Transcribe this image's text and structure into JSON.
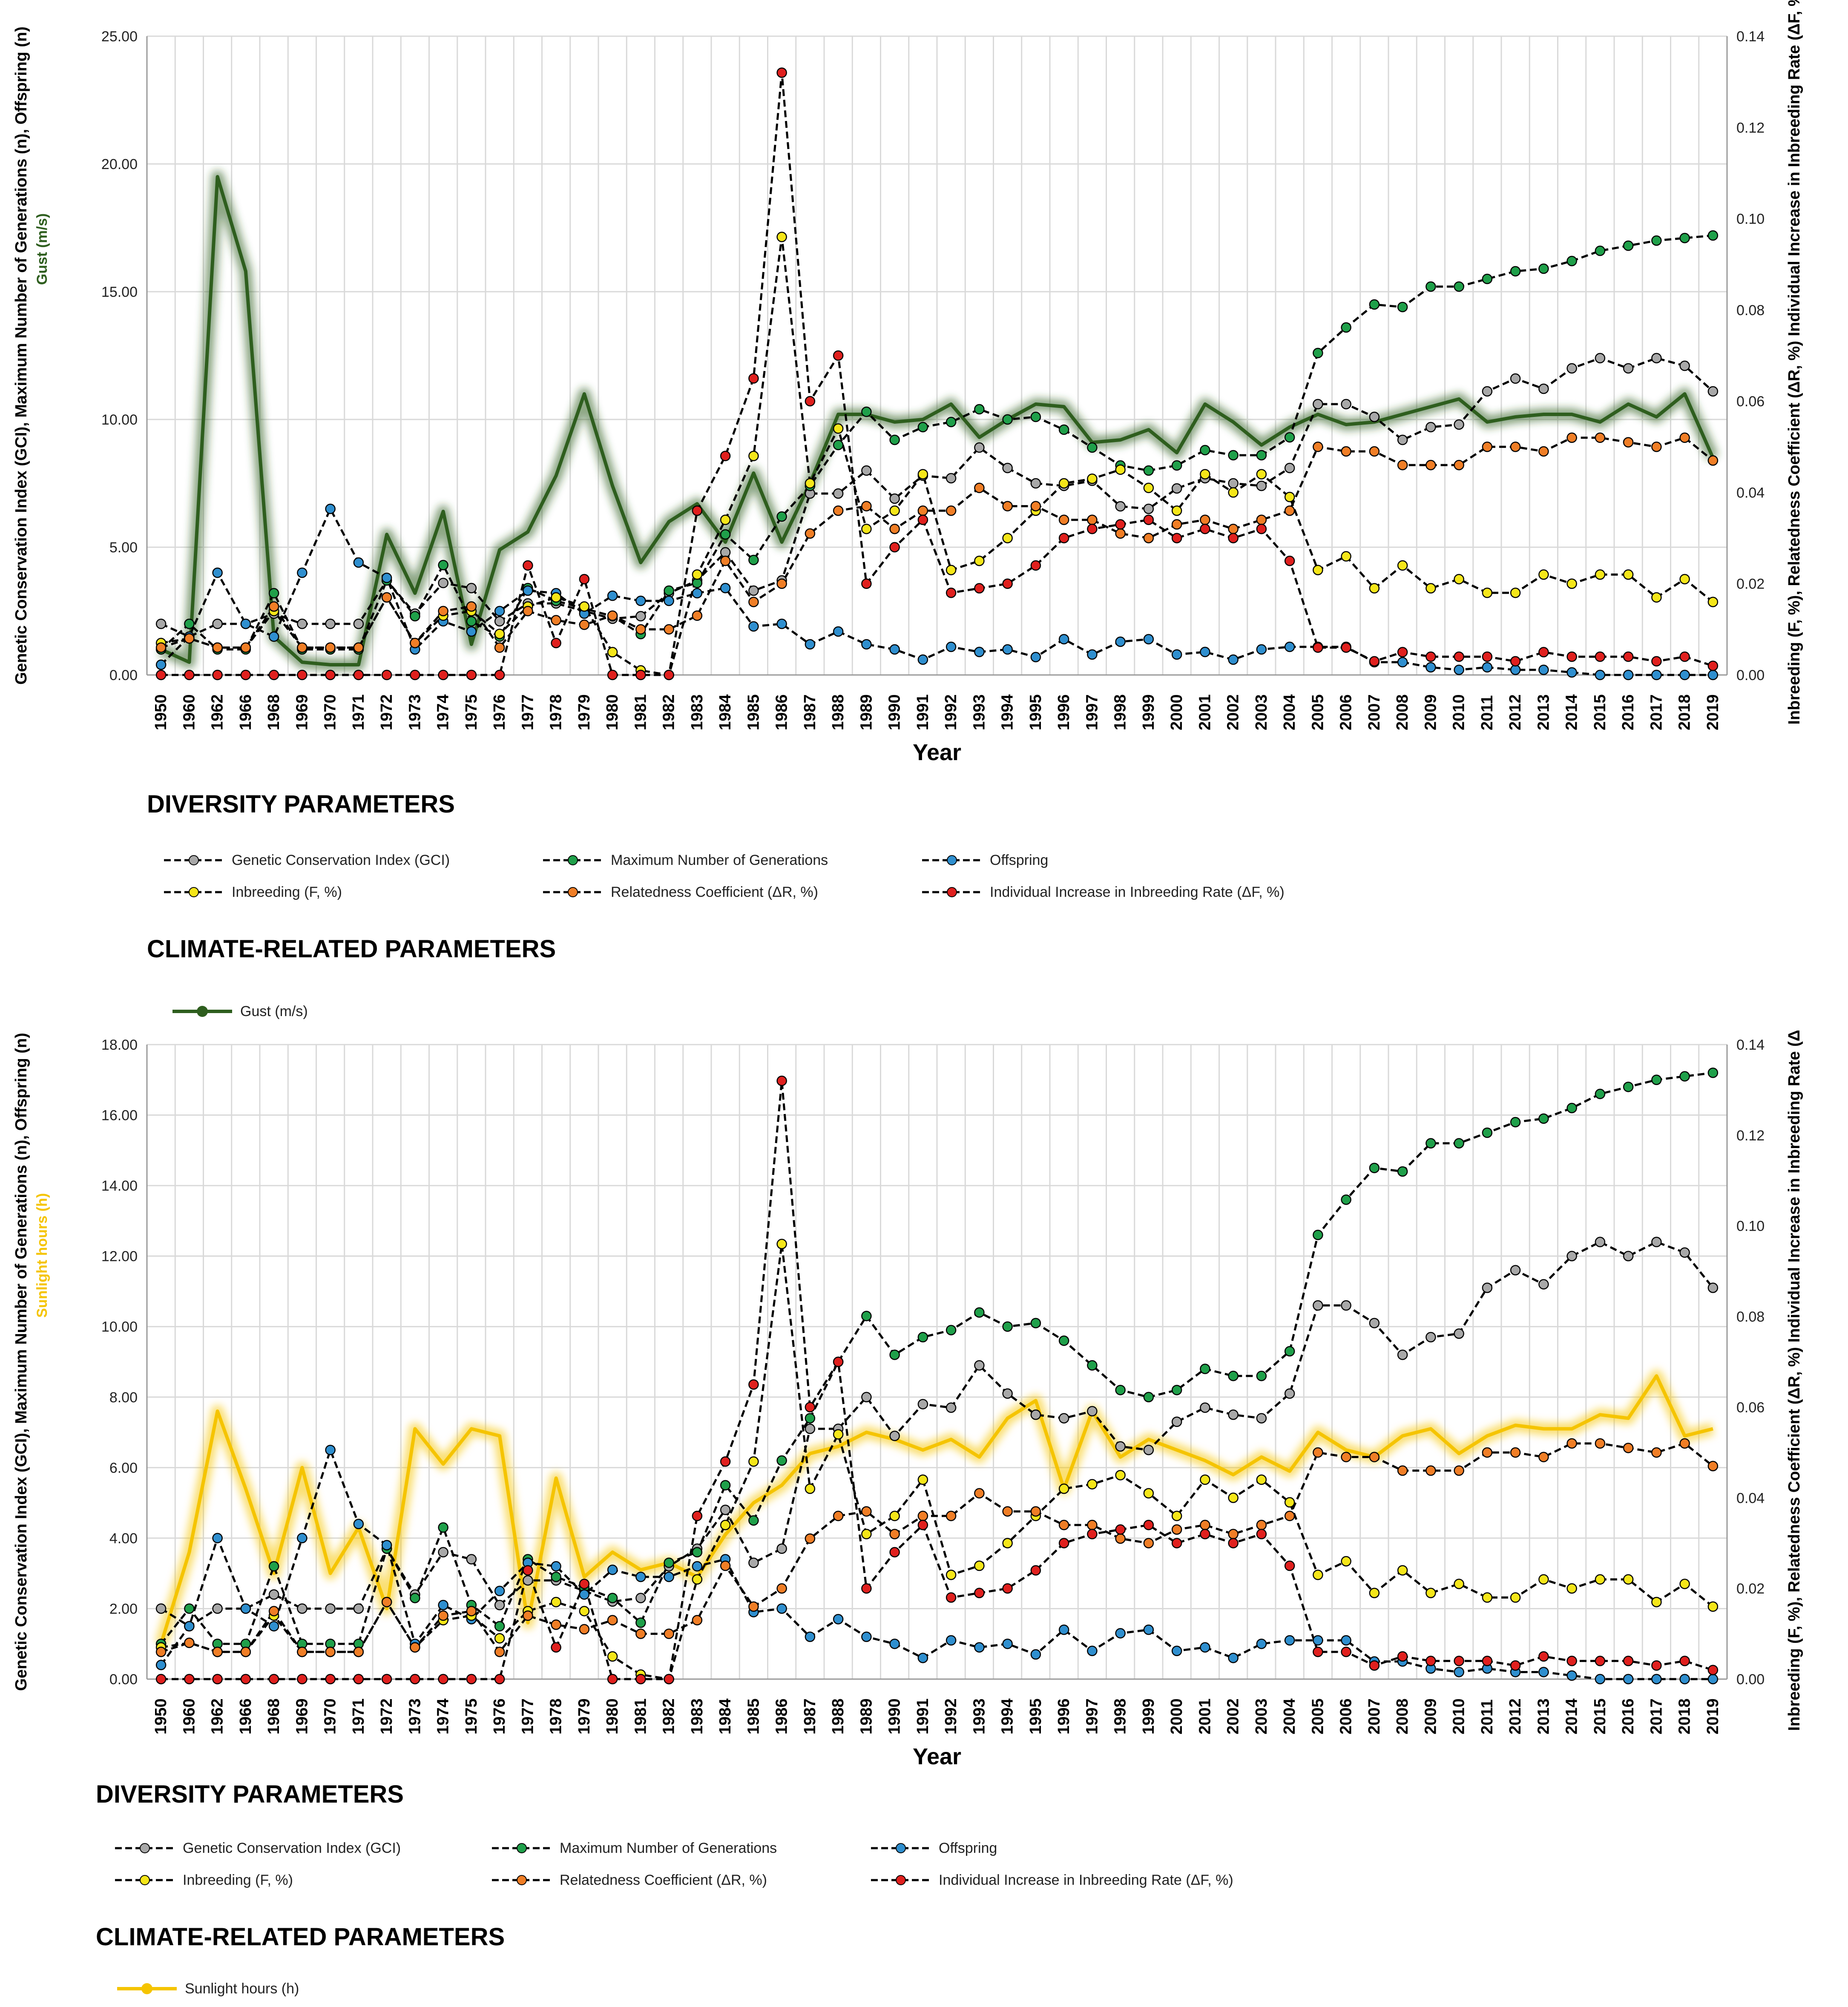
{
  "chart_data": [
    {
      "type": "line",
      "years": [
        "1950",
        "1960",
        "1962",
        "1966",
        "1968",
        "1969",
        "1970",
        "1971",
        "1972",
        "1973",
        "1974",
        "1975",
        "1976",
        "1977",
        "1978",
        "1979",
        "1980",
        "1981",
        "1982",
        "1983",
        "1984",
        "1985",
        "1986",
        "1987",
        "1988",
        "1989",
        "1990",
        "1991",
        "1992",
        "1993",
        "1994",
        "1995",
        "1996",
        "1997",
        "1998",
        "1999",
        "2000",
        "2001",
        "2002",
        "2003",
        "2004",
        "2005",
        "2006",
        "2007",
        "2008",
        "2009",
        "2010",
        "2011",
        "2012",
        "2013",
        "2014",
        "2015",
        "2016",
        "2017",
        "2018",
        "2019"
      ],
      "xlabel": "Year",
      "y_left_label": "Genetic Conservation Index (GCI), Maximum Number of Generations (n), Offspring (n)",
      "y_left_climate_label": "Gust (m/s)",
      "y_right_label": "Inbreeding (F, %), Relatedness Coefficient (ΔR, %) Individual Increase in Inbreeding Rate (ΔF, %)",
      "y_left_lim": [
        0,
        25
      ],
      "y_right_lim": [
        0,
        0.14
      ],
      "y_left_ticks": [
        "0.00",
        "5.00",
        "10.00",
        "15.00",
        "20.00",
        "25.00"
      ],
      "y_right_ticks": [
        "0.00",
        "0.02",
        "0.04",
        "0.06",
        "0.08",
        "0.10",
        "0.12",
        "0.14"
      ],
      "climate": {
        "name": "Gust (m/s)",
        "color": "#2e5e1e",
        "values": [
          1.0,
          0.5,
          19.5,
          15.8,
          1.5,
          0.5,
          0.4,
          0.4,
          5.5,
          3.2,
          6.4,
          1.2,
          4.9,
          5.6,
          7.8,
          11.0,
          7.4,
          4.4,
          6.0,
          6.7,
          5.2,
          7.9,
          5.2,
          7.5,
          10.2,
          10.2,
          9.9,
          10.0,
          10.6,
          9.3,
          10.0,
          10.6,
          10.5,
          9.1,
          9.2,
          9.6,
          8.7,
          10.6,
          9.9,
          9.0,
          9.7,
          10.2,
          9.8,
          9.9,
          10.2,
          10.5,
          10.8,
          9.9,
          10.1,
          10.2,
          10.2,
          9.9,
          10.6,
          10.1,
          11.0,
          8.5
        ]
      },
      "series": [
        {
          "name": "Genetic Conservation Index (GCI)",
          "axis": "left",
          "marker": "#a8a8a8",
          "values": [
            2.0,
            1.5,
            2.0,
            2.0,
            2.4,
            2.0,
            2.0,
            2.0,
            3.7,
            2.4,
            3.6,
            3.4,
            2.1,
            2.8,
            2.8,
            2.5,
            2.2,
            2.3,
            3.2,
            3.7,
            4.8,
            3.3,
            3.7,
            7.1,
            7.1,
            8.0,
            6.9,
            7.8,
            7.7,
            8.9,
            8.1,
            7.5,
            7.4,
            7.6,
            6.6,
            6.5,
            7.3,
            7.7,
            7.5,
            7.4,
            8.1,
            10.6,
            10.6,
            10.1,
            9.2,
            9.7,
            9.8,
            11.1,
            11.6,
            11.2,
            12.0,
            12.4,
            12.0,
            12.4,
            12.1,
            11.1
          ]
        },
        {
          "name": "Maximum Number of Generations",
          "axis": "left",
          "marker": "#1fa04a",
          "values": [
            1.0,
            2.0,
            1.0,
            1.0,
            3.2,
            1.0,
            1.0,
            1.0,
            3.7,
            2.3,
            4.3,
            2.1,
            1.5,
            3.4,
            2.9,
            2.6,
            2.3,
            1.6,
            3.3,
            3.6,
            5.5,
            4.5,
            6.2,
            7.4,
            9.0,
            10.3,
            9.2,
            9.7,
            9.9,
            10.4,
            10.0,
            10.1,
            9.6,
            8.9,
            8.2,
            8.0,
            8.2,
            8.8,
            8.6,
            8.6,
            9.3,
            12.6,
            13.6,
            14.5,
            14.4,
            15.2,
            15.2,
            15.5,
            15.8,
            15.9,
            16.2,
            16.6,
            16.8,
            17.0,
            17.1,
            17.2
          ]
        },
        {
          "name": "Offspring",
          "axis": "left",
          "marker": "#2f8fcf",
          "values": [
            0.4,
            1.5,
            4.0,
            2.0,
            1.5,
            4.0,
            6.5,
            4.4,
            3.8,
            1.0,
            2.1,
            1.7,
            2.5,
            3.3,
            3.2,
            2.4,
            3.1,
            2.9,
            2.9,
            3.2,
            3.4,
            1.9,
            2.0,
            1.2,
            1.7,
            1.2,
            1.0,
            0.6,
            1.1,
            0.9,
            1.0,
            0.7,
            1.4,
            0.8,
            1.3,
            1.4,
            0.8,
            0.9,
            0.6,
            1.0,
            1.1,
            1.1,
            1.1,
            0.5,
            0.5,
            0.3,
            0.2,
            0.3,
            0.2,
            0.2,
            0.1,
            0.0,
            0.0,
            0.0,
            0.0,
            0.0
          ]
        },
        {
          "name": "Inbreeding (F, %)",
          "axis": "right",
          "marker": "#f5e619",
          "values": [
            0.007,
            0.008,
            0.006,
            0.006,
            0.014,
            0.006,
            0.006,
            0.006,
            0.017,
            0.007,
            0.013,
            0.014,
            0.009,
            0.015,
            0.017,
            0.015,
            0.005,
            0.001,
            0.0,
            0.022,
            0.034,
            0.048,
            0.096,
            0.042,
            0.054,
            0.032,
            0.036,
            0.044,
            0.023,
            0.025,
            0.03,
            0.036,
            0.042,
            0.043,
            0.045,
            0.041,
            0.036,
            0.044,
            0.04,
            0.044,
            0.039,
            0.023,
            0.026,
            0.019,
            0.024,
            0.019,
            0.021,
            0.018,
            0.018,
            0.022,
            0.02,
            0.022,
            0.022,
            0.017,
            0.021,
            0.016
          ]
        },
        {
          "name": "Relatedness Coefficient (ΔR, %)",
          "axis": "right",
          "marker": "#f07e26",
          "values": [
            0.006,
            0.008,
            0.006,
            0.006,
            0.015,
            0.006,
            0.006,
            0.006,
            0.017,
            0.007,
            0.014,
            0.015,
            0.006,
            0.014,
            0.012,
            0.011,
            0.013,
            0.01,
            0.01,
            0.013,
            0.025,
            0.016,
            0.02,
            0.031,
            0.036,
            0.037,
            0.032,
            0.036,
            0.036,
            0.041,
            0.037,
            0.037,
            0.034,
            0.034,
            0.031,
            0.03,
            0.033,
            0.034,
            0.032,
            0.034,
            0.036,
            0.05,
            0.049,
            0.049,
            0.046,
            0.046,
            0.046,
            0.05,
            0.05,
            0.049,
            0.052,
            0.052,
            0.051,
            0.05,
            0.052,
            0.047
          ]
        },
        {
          "name": "Individual Increase in Inbreeding Rate (ΔF, %)",
          "axis": "right",
          "marker": "#e0201e",
          "values": [
            0.0,
            0.0,
            0.0,
            0.0,
            0.0,
            0.0,
            0.0,
            0.0,
            0.0,
            0.0,
            0.0,
            0.0,
            0.0,
            0.024,
            0.007,
            0.021,
            0.0,
            0.0,
            0.0,
            0.036,
            0.048,
            0.065,
            0.132,
            0.06,
            0.07,
            0.02,
            0.028,
            0.034,
            0.018,
            0.019,
            0.02,
            0.024,
            0.03,
            0.032,
            0.033,
            0.034,
            0.03,
            0.032,
            0.03,
            0.032,
            0.025,
            0.006,
            0.006,
            0.003,
            0.005,
            0.004,
            0.004,
            0.004,
            0.003,
            0.005,
            0.004,
            0.004,
            0.004,
            0.003,
            0.004,
            0.002
          ]
        }
      ],
      "diversity_heading": "DIVERSITY PARAMETERS",
      "climate_heading": "CLIMATE-RELATED PARAMETERS"
    },
    {
      "type": "line",
      "years": [
        "1950",
        "1960",
        "1962",
        "1966",
        "1968",
        "1969",
        "1970",
        "1971",
        "1972",
        "1973",
        "1974",
        "1975",
        "1976",
        "1977",
        "1978",
        "1979",
        "1980",
        "1981",
        "1982",
        "1983",
        "1984",
        "1985",
        "1986",
        "1987",
        "1988",
        "1989",
        "1990",
        "1991",
        "1992",
        "1993",
        "1994",
        "1995",
        "1996",
        "1997",
        "1998",
        "1999",
        "2000",
        "2001",
        "2002",
        "2003",
        "2004",
        "2005",
        "2006",
        "2007",
        "2008",
        "2009",
        "2010",
        "2011",
        "2012",
        "2013",
        "2014",
        "2015",
        "2016",
        "2017",
        "2018",
        "2019"
      ],
      "xlabel": "Year",
      "y_left_label": "Genetic Conservation Index (GCI), Maximum Number of Generations (n), Offspring (n)",
      "y_left_climate_label": "Sunlight hours (h)",
      "y_right_label": "Inbreeding (F, %), Relatedness Coefficient (ΔR, %) Individual Increase in Inbreeding Rate (ΔF, %)",
      "y_left_lim": [
        0,
        18
      ],
      "y_right_lim": [
        0,
        0.14
      ],
      "y_left_ticks": [
        "0.00",
        "2.00",
        "4.00",
        "6.00",
        "8.00",
        "10.00",
        "12.00",
        "14.00",
        "16.00",
        "18.00"
      ],
      "y_right_ticks": [
        "0.00",
        "0.02",
        "0.04",
        "0.06",
        "0.08",
        "0.10",
        "0.12",
        "0.14"
      ],
      "climate": {
        "name": "Sunlight hours (h)",
        "color": "#f5c400",
        "values": [
          1.0,
          3.6,
          7.6,
          5.4,
          3.0,
          6.0,
          3.0,
          4.3,
          2.0,
          7.1,
          6.1,
          7.1,
          6.9,
          1.6,
          5.7,
          2.9,
          3.6,
          3.1,
          3.3,
          2.9,
          4.1,
          5.0,
          5.5,
          6.4,
          6.6,
          7.0,
          6.8,
          6.5,
          6.8,
          6.3,
          7.4,
          7.9,
          5.4,
          7.6,
          6.3,
          6.8,
          6.5,
          6.2,
          5.8,
          6.3,
          5.9,
          7.0,
          6.5,
          6.3,
          6.9,
          7.1,
          6.4,
          6.9,
          7.2,
          7.1,
          7.1,
          7.5,
          7.4,
          8.6,
          6.9,
          7.1
        ]
      },
      "series": [
        {
          "name": "Genetic Conservation Index (GCI)",
          "axis": "left",
          "marker": "#a8a8a8",
          "values": [
            2.0,
            1.5,
            2.0,
            2.0,
            2.4,
            2.0,
            2.0,
            2.0,
            3.7,
            2.4,
            3.6,
            3.4,
            2.1,
            2.8,
            2.8,
            2.5,
            2.2,
            2.3,
            3.2,
            3.7,
            4.8,
            3.3,
            3.7,
            7.1,
            7.1,
            8.0,
            6.9,
            7.8,
            7.7,
            8.9,
            8.1,
            7.5,
            7.4,
            7.6,
            6.6,
            6.5,
            7.3,
            7.7,
            7.5,
            7.4,
            8.1,
            10.6,
            10.6,
            10.1,
            9.2,
            9.7,
            9.8,
            11.1,
            11.6,
            11.2,
            12.0,
            12.4,
            12.0,
            12.4,
            12.1,
            11.1
          ]
        },
        {
          "name": "Maximum Number of Generations",
          "axis": "left",
          "marker": "#1fa04a",
          "values": [
            1.0,
            2.0,
            1.0,
            1.0,
            3.2,
            1.0,
            1.0,
            1.0,
            3.7,
            2.3,
            4.3,
            2.1,
            1.5,
            3.4,
            2.9,
            2.6,
            2.3,
            1.6,
            3.3,
            3.6,
            5.5,
            4.5,
            6.2,
            7.4,
            9.0,
            10.3,
            9.2,
            9.7,
            9.9,
            10.4,
            10.0,
            10.1,
            9.6,
            8.9,
            8.2,
            8.0,
            8.2,
            8.8,
            8.6,
            8.6,
            9.3,
            12.6,
            13.6,
            14.5,
            14.4,
            15.2,
            15.2,
            15.5,
            15.8,
            15.9,
            16.2,
            16.6,
            16.8,
            17.0,
            17.1,
            17.2
          ]
        },
        {
          "name": "Offspring",
          "axis": "left",
          "marker": "#2f8fcf",
          "values": [
            0.4,
            1.5,
            4.0,
            2.0,
            1.5,
            4.0,
            6.5,
            4.4,
            3.8,
            1.0,
            2.1,
            1.7,
            2.5,
            3.3,
            3.2,
            2.4,
            3.1,
            2.9,
            2.9,
            3.2,
            3.4,
            1.9,
            2.0,
            1.2,
            1.7,
            1.2,
            1.0,
            0.6,
            1.1,
            0.9,
            1.0,
            0.7,
            1.4,
            0.8,
            1.3,
            1.4,
            0.8,
            0.9,
            0.6,
            1.0,
            1.1,
            1.1,
            1.1,
            0.5,
            0.5,
            0.3,
            0.2,
            0.3,
            0.2,
            0.2,
            0.1,
            0.0,
            0.0,
            0.0,
            0.0,
            0.0
          ]
        },
        {
          "name": "Inbreeding (F, %)",
          "axis": "right",
          "marker": "#f5e619",
          "values": [
            0.007,
            0.008,
            0.006,
            0.006,
            0.014,
            0.006,
            0.006,
            0.006,
            0.017,
            0.007,
            0.013,
            0.014,
            0.009,
            0.015,
            0.017,
            0.015,
            0.005,
            0.001,
            0.0,
            0.022,
            0.034,
            0.048,
            0.096,
            0.042,
            0.054,
            0.032,
            0.036,
            0.044,
            0.023,
            0.025,
            0.03,
            0.036,
            0.042,
            0.043,
            0.045,
            0.041,
            0.036,
            0.044,
            0.04,
            0.044,
            0.039,
            0.023,
            0.026,
            0.019,
            0.024,
            0.019,
            0.021,
            0.018,
            0.018,
            0.022,
            0.02,
            0.022,
            0.022,
            0.017,
            0.021,
            0.016
          ]
        },
        {
          "name": "Relatedness Coefficient (ΔR, %)",
          "axis": "right",
          "marker": "#f07e26",
          "values": [
            0.006,
            0.008,
            0.006,
            0.006,
            0.015,
            0.006,
            0.006,
            0.006,
            0.017,
            0.007,
            0.014,
            0.015,
            0.006,
            0.014,
            0.012,
            0.011,
            0.013,
            0.01,
            0.01,
            0.013,
            0.025,
            0.016,
            0.02,
            0.031,
            0.036,
            0.037,
            0.032,
            0.036,
            0.036,
            0.041,
            0.037,
            0.037,
            0.034,
            0.034,
            0.031,
            0.03,
            0.033,
            0.034,
            0.032,
            0.034,
            0.036,
            0.05,
            0.049,
            0.049,
            0.046,
            0.046,
            0.046,
            0.05,
            0.05,
            0.049,
            0.052,
            0.052,
            0.051,
            0.05,
            0.052,
            0.047
          ]
        },
        {
          "name": "Individual Increase in Inbreeding Rate (ΔF, %)",
          "axis": "right",
          "marker": "#e0201e",
          "values": [
            0.0,
            0.0,
            0.0,
            0.0,
            0.0,
            0.0,
            0.0,
            0.0,
            0.0,
            0.0,
            0.0,
            0.0,
            0.0,
            0.024,
            0.007,
            0.021,
            0.0,
            0.0,
            0.0,
            0.036,
            0.048,
            0.065,
            0.132,
            0.06,
            0.07,
            0.02,
            0.028,
            0.034,
            0.018,
            0.019,
            0.02,
            0.024,
            0.03,
            0.032,
            0.033,
            0.034,
            0.03,
            0.032,
            0.03,
            0.032,
            0.025,
            0.006,
            0.006,
            0.003,
            0.005,
            0.004,
            0.004,
            0.004,
            0.003,
            0.005,
            0.004,
            0.004,
            0.004,
            0.003,
            0.004,
            0.002
          ]
        }
      ],
      "diversity_heading": "DIVERSITY PARAMETERS",
      "climate_heading": "CLIMATE-RELATED PARAMETERS"
    }
  ]
}
